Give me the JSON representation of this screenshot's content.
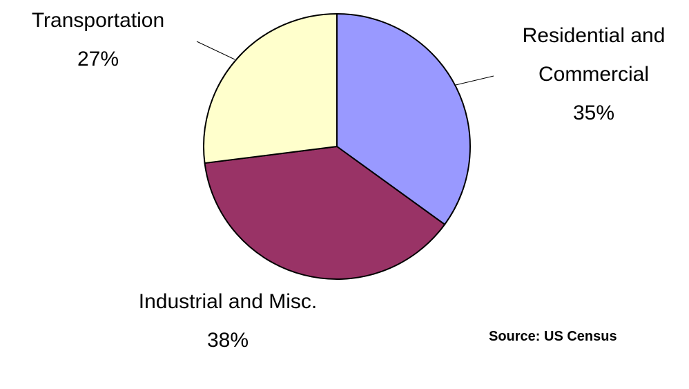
{
  "chart_data": {
    "type": "pie",
    "categories": [
      "Residential and Commercial",
      "Industrial and Misc.",
      "Transportation"
    ],
    "values": [
      35,
      38,
      27
    ],
    "value_labels": [
      "35%",
      "38%",
      "27%"
    ],
    "colors": [
      "#9999ff",
      "#993366",
      "#ffffcc"
    ],
    "source": "Source: US Census"
  }
}
